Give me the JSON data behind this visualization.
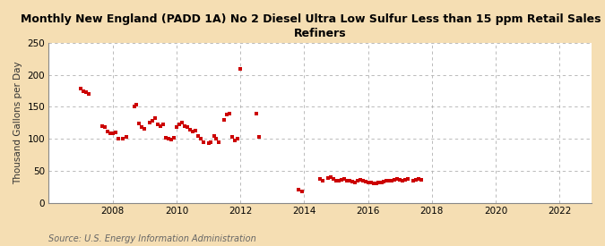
{
  "title": "Monthly New England (PADD 1A) No 2 Diesel Ultra Low Sulfur Less than 15 ppm Retail Sales by\nRefiners",
  "ylabel": "Thousand Gallons per Day",
  "source": "Source: U.S. Energy Information Administration",
  "fig_background": "#f5deb3",
  "plot_background": "#ffffff",
  "marker_color": "#cc0000",
  "xlim": [
    2006.0,
    2023.0
  ],
  "ylim": [
    0,
    250
  ],
  "yticks": [
    0,
    50,
    100,
    150,
    200,
    250
  ],
  "xticks": [
    2008,
    2010,
    2012,
    2014,
    2016,
    2018,
    2020,
    2022
  ],
  "data_x": [
    2007.0,
    2007.08,
    2007.17,
    2007.25,
    2007.67,
    2007.75,
    2007.83,
    2007.92,
    2008.0,
    2008.08,
    2008.17,
    2008.33,
    2008.42,
    2008.67,
    2008.75,
    2008.83,
    2008.92,
    2009.0,
    2009.17,
    2009.25,
    2009.33,
    2009.42,
    2009.5,
    2009.58,
    2009.67,
    2009.75,
    2009.83,
    2009.92,
    2010.0,
    2010.08,
    2010.17,
    2010.25,
    2010.33,
    2010.42,
    2010.5,
    2010.58,
    2010.67,
    2010.75,
    2010.83,
    2011.0,
    2011.08,
    2011.17,
    2011.25,
    2011.33,
    2011.5,
    2011.58,
    2011.67,
    2011.75,
    2011.83,
    2011.92,
    2012.0,
    2012.5,
    2012.58,
    2013.83,
    2013.92,
    2014.5,
    2014.58,
    2014.75,
    2014.83,
    2014.92,
    2015.0,
    2015.08,
    2015.17,
    2015.25,
    2015.33,
    2015.42,
    2015.5,
    2015.58,
    2015.67,
    2015.75,
    2015.83,
    2015.92,
    2016.0,
    2016.08,
    2016.17,
    2016.25,
    2016.33,
    2016.42,
    2016.5,
    2016.58,
    2016.67,
    2016.75,
    2016.83,
    2016.92,
    2017.0,
    2017.08,
    2017.17,
    2017.25,
    2017.42,
    2017.5,
    2017.58,
    2017.67
  ],
  "data_y": [
    178,
    175,
    173,
    170,
    120,
    118,
    112,
    109,
    108,
    110,
    100,
    100,
    103,
    151,
    153,
    124,
    118,
    116,
    125,
    128,
    133,
    123,
    120,
    122,
    102,
    100,
    99,
    101,
    118,
    122,
    125,
    120,
    118,
    114,
    112,
    113,
    105,
    100,
    95,
    93,
    95,
    105,
    100,
    95,
    130,
    138,
    140,
    103,
    97,
    100,
    210,
    140,
    103,
    20,
    18,
    37,
    35,
    38,
    40,
    37,
    35,
    34,
    36,
    37,
    35,
    34,
    33,
    32,
    35,
    36,
    35,
    33,
    32,
    31,
    30,
    30,
    31,
    32,
    33,
    34,
    35,
    35,
    36,
    37,
    36,
    35,
    36,
    37,
    35,
    36,
    37,
    36
  ]
}
